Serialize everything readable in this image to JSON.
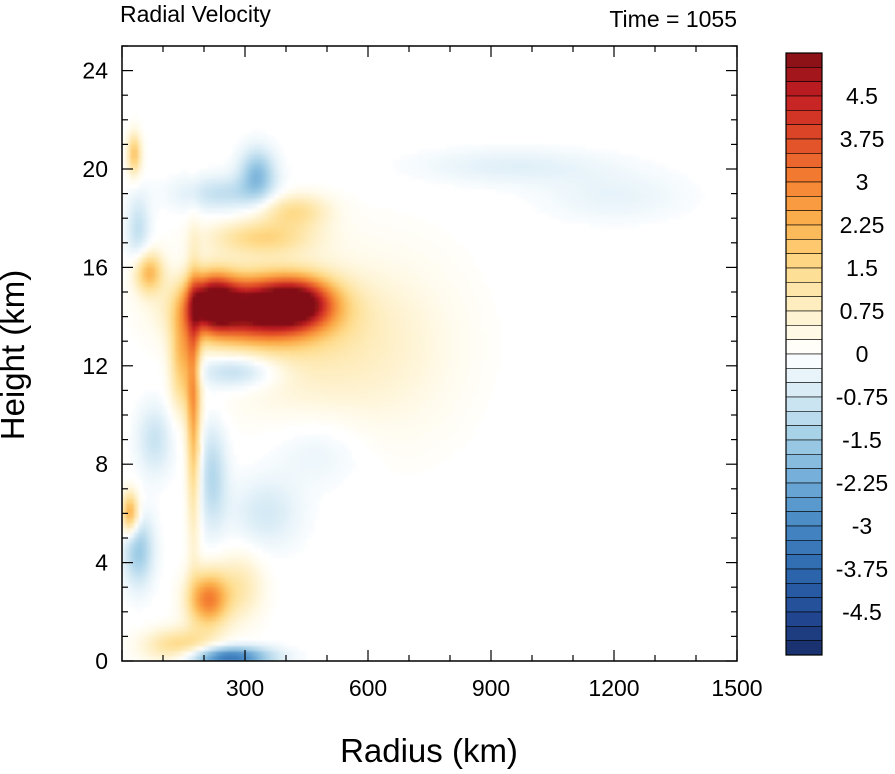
{
  "chart_data": {
    "type": "heatmap",
    "title": "Radial Velocity",
    "subtitle": "Time = 1055",
    "xlabel": "Radius (km)",
    "ylabel": "Height (km)",
    "xlim": [
      0,
      1500
    ],
    "ylim": [
      0,
      25
    ],
    "x_ticks": [
      300,
      600,
      900,
      1200,
      1500
    ],
    "y_ticks": [
      0,
      4,
      8,
      12,
      16,
      20,
      24
    ],
    "colorbar": {
      "levels": [
        -5.25,
        -5.0,
        -4.75,
        -4.5,
        -4.25,
        -4.0,
        -3.75,
        -3.5,
        -3.25,
        -3.0,
        -2.75,
        -2.5,
        -2.25,
        -2.0,
        -1.75,
        -1.5,
        -1.25,
        -1.0,
        -0.75,
        -0.5,
        -0.25,
        0.0,
        0.25,
        0.5,
        0.75,
        1.0,
        1.25,
        1.5,
        1.75,
        2.0,
        2.25,
        2.5,
        2.75,
        3.0,
        3.25,
        3.5,
        3.75,
        4.0,
        4.25,
        4.5,
        4.75,
        5.0,
        5.25
      ],
      "tick_labels": [
        "4.5",
        "3.75",
        "3",
        "2.25",
        "1.5",
        "0.75",
        "0",
        "-0.75",
        "-1.5",
        "-2.25",
        "-3",
        "-3.75",
        "-4.5"
      ],
      "tick_values": [
        4.5,
        3.75,
        3.0,
        2.25,
        1.5,
        0.75,
        0.0,
        -0.75,
        -1.5,
        -2.25,
        -3.0,
        -3.75,
        -4.5
      ],
      "colormap": "blue-white-red diverging"
    },
    "features": [
      {
        "r": 330,
        "z": 14.3,
        "sr": 110,
        "sz": 0.9,
        "v": 5.2
      },
      {
        "r": 430,
        "z": 14.6,
        "sr": 60,
        "sz": 0.7,
        "v": 3.0
      },
      {
        "r": 220,
        "z": 14.6,
        "sr": 40,
        "sz": 0.8,
        "v": 4.0
      },
      {
        "r": 175,
        "z": 10.5,
        "sr": 12,
        "sz": 3.5,
        "v": 2.5
      },
      {
        "r": 145,
        "z": 12.2,
        "sr": 20,
        "sz": 1.4,
        "v": 2.0
      },
      {
        "r": 210,
        "z": 2.5,
        "sr": 35,
        "sz": 0.8,
        "v": 3.0
      },
      {
        "r": 20,
        "z": 6.0,
        "sr": 15,
        "sz": 0.6,
        "v": 2.6
      },
      {
        "r": 65,
        "z": 15.8,
        "sr": 25,
        "sz": 0.6,
        "v": 2.2
      },
      {
        "r": 30,
        "z": 20.6,
        "sr": 12,
        "sz": 0.6,
        "v": 2.0
      },
      {
        "r": 340,
        "z": 17.2,
        "sr": 90,
        "sz": 0.5,
        "v": 1.5
      },
      {
        "r": 420,
        "z": 18.3,
        "sr": 60,
        "sz": 0.5,
        "v": 1.4
      },
      {
        "r": 420,
        "z": 13.0,
        "sr": 150,
        "sz": 2.0,
        "v": 0.8
      },
      {
        "r": 650,
        "z": 12.8,
        "sr": 140,
        "sz": 2.8,
        "v": 0.5
      },
      {
        "r": 290,
        "z": 3.0,
        "sr": 40,
        "sz": 1.0,
        "v": 1.0
      },
      {
        "r": 140,
        "z": 0.6,
        "sr": 60,
        "sz": 0.5,
        "v": 1.6
      },
      {
        "r": 260,
        "z": 0.15,
        "sr": 70,
        "sz": 0.3,
        "v": -3.5
      },
      {
        "r": 330,
        "z": 19.8,
        "sr": 30,
        "sz": 0.7,
        "v": -1.8
      },
      {
        "r": 250,
        "z": 19.0,
        "sr": 80,
        "sz": 0.5,
        "v": -1.0
      },
      {
        "r": 280,
        "z": 11.8,
        "sr": 70,
        "sz": 0.5,
        "v": -1.4
      },
      {
        "r": 40,
        "z": 4.5,
        "sr": 25,
        "sz": 1.0,
        "v": -1.6
      },
      {
        "r": 220,
        "z": 7.5,
        "sr": 25,
        "sz": 1.5,
        "v": -1.2
      },
      {
        "r": 950,
        "z": 20.1,
        "sr": 160,
        "sz": 0.5,
        "v": -0.5
      },
      {
        "r": 1200,
        "z": 18.9,
        "sr": 120,
        "sz": 0.7,
        "v": -0.4
      },
      {
        "r": 40,
        "z": 17.5,
        "sr": 20,
        "sz": 1.0,
        "v": -1.0
      },
      {
        "r": 350,
        "z": 6.0,
        "sr": 60,
        "sz": 1.0,
        "v": -0.7
      },
      {
        "r": 480,
        "z": 8.5,
        "sr": 80,
        "sz": 1.0,
        "v": -0.4
      },
      {
        "r": 80,
        "z": 9.0,
        "sr": 30,
        "sz": 1.0,
        "v": -0.9
      }
    ]
  }
}
